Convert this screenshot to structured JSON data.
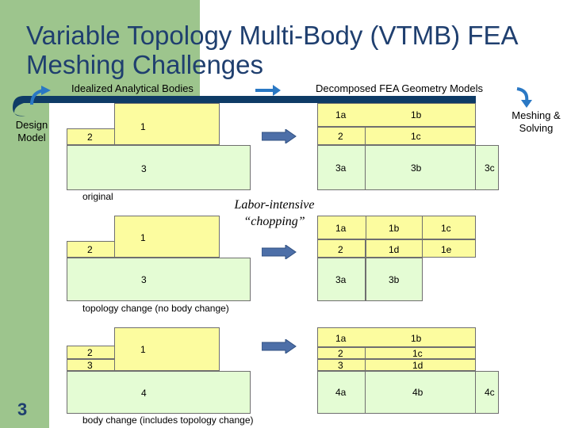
{
  "title": "Variable Topology Multi-Body (VTMB) FEA Meshing Challenges",
  "headers": {
    "left": "Idealized Analytical Bodies",
    "right": "Decomposed FEA Geometry Models",
    "design_model": "Design Model",
    "meshing": "Meshing & Solving"
  },
  "left_sections": [
    {
      "labels": [
        "1",
        "2",
        "3"
      ],
      "caption": "original"
    },
    {
      "labels": [
        "1",
        "2",
        "3"
      ],
      "caption": "topology change (no body change)"
    },
    {
      "labels": [
        "1",
        "2",
        "3",
        "4"
      ],
      "caption": "body change (includes topology change)"
    }
  ],
  "right_sections": [
    {
      "cells": [
        "1a",
        "1b",
        "2",
        "1c",
        "3a",
        "3b",
        "3c"
      ]
    },
    {
      "cells": [
        "1a",
        "1b",
        "1c",
        "2",
        "1d",
        "1e",
        "3a",
        "3b"
      ]
    },
    {
      "cells": [
        "1a",
        "1b",
        "2",
        "1c",
        "3",
        "1d",
        "4a",
        "4b",
        "4c"
      ]
    }
  ],
  "annotation": "Labor-intensive “chopping”",
  "slide_number": "3",
  "colors": {
    "title": "#1f3f6f",
    "navy_bar": "#0e3b66",
    "yellow_body": "#fcfc9f",
    "green_body": "#e4fcd4",
    "accent_green": "#9dc58d",
    "arrow_blue": "#4d6fa8"
  }
}
